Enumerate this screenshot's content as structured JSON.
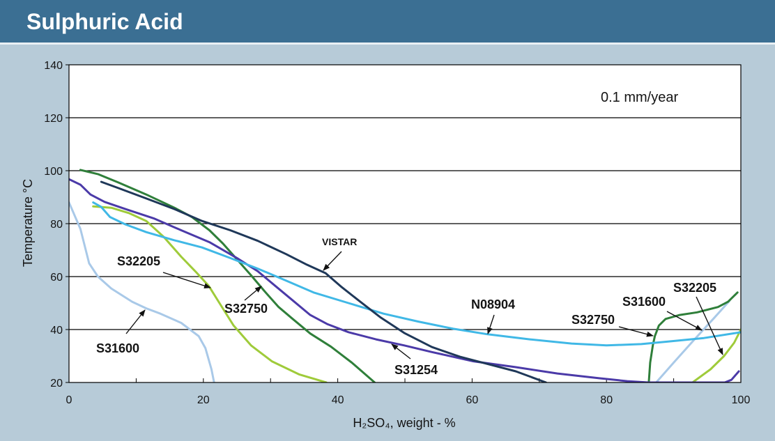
{
  "chart_data": {
    "type": "line",
    "title": "Sulphuric Acid",
    "xlabel": "H₂SO₄, weight - %",
    "ylabel": "Temperature °C",
    "annotation": "0.1 mm/year",
    "xlim": [
      0,
      100
    ],
    "ylim": [
      20,
      140
    ],
    "xticks": [
      0,
      20,
      40,
      60,
      80,
      100
    ],
    "yticks": [
      20,
      40,
      60,
      80,
      100,
      120,
      140
    ],
    "grid": true,
    "legend": "none (series labelled by callouts)",
    "series": [
      {
        "name": "S31600",
        "color": "#a9c9e8",
        "segments": [
          [
            [
              0,
              88
            ],
            [
              1.7,
              78
            ],
            [
              3,
              65
            ],
            [
              4.3,
              60
            ],
            [
              6.3,
              55.5
            ],
            [
              9.4,
              50.5
            ],
            [
              11.5,
              48
            ],
            [
              13.6,
              46
            ],
            [
              16.7,
              42.5
            ],
            [
              19.3,
              37.5
            ],
            [
              20.3,
              33
            ],
            [
              21.2,
              25
            ],
            [
              21.6,
              20
            ]
          ],
          [
            [
              87.4,
              20
            ],
            [
              90,
              27.5
            ],
            [
              93,
              36
            ],
            [
              96,
              44.3
            ],
            [
              98.3,
              50.8
            ]
          ]
        ]
      },
      {
        "name": "S32205",
        "color": "#9fcb3a",
        "segments": [
          [
            [
              3.6,
              86.5
            ],
            [
              6.3,
              86
            ],
            [
              8.9,
              84
            ],
            [
              11.5,
              81
            ],
            [
              14.1,
              75
            ],
            [
              16.7,
              67.5
            ],
            [
              18.8,
              62
            ],
            [
              20.8,
              56.5
            ],
            [
              22.4,
              50
            ],
            [
              24.5,
              41.5
            ],
            [
              27.1,
              34
            ],
            [
              30.2,
              28
            ],
            [
              34.3,
              23
            ],
            [
              38.3,
              20
            ]
          ],
          [
            [
              92.8,
              20
            ],
            [
              95.5,
              25
            ],
            [
              97.5,
              30
            ],
            [
              99,
              35
            ],
            [
              100,
              40
            ]
          ]
        ]
      },
      {
        "name": "S32750",
        "color": "#2f7f3a",
        "segments": [
          [
            [
              1.7,
              100.3
            ],
            [
              4.3,
              98.7
            ],
            [
              7.4,
              95.5
            ],
            [
              11.5,
              91
            ],
            [
              15.7,
              86
            ],
            [
              18.3,
              82.5
            ],
            [
              20.9,
              77.5
            ],
            [
              22.9,
              72.5
            ],
            [
              25,
              66.5
            ],
            [
              27.1,
              60.5
            ],
            [
              29.1,
              54.5
            ],
            [
              31.2,
              48.5
            ],
            [
              33.3,
              44
            ],
            [
              35.9,
              38.5
            ],
            [
              39,
              33.5
            ],
            [
              42.1,
              27.5
            ],
            [
              45.5,
              20
            ]
          ],
          [
            [
              86.3,
              20
            ],
            [
              86.5,
              27.5
            ],
            [
              86.9,
              34
            ],
            [
              87.2,
              37.5
            ],
            [
              87.8,
              41.5
            ],
            [
              88.8,
              44
            ],
            [
              90.9,
              45.5
            ],
            [
              93.5,
              46.5
            ],
            [
              96.6,
              48.5
            ],
            [
              98.1,
              50.5
            ],
            [
              99.5,
              54
            ]
          ]
        ]
      },
      {
        "name": "S31254",
        "color": "#4b3aa8",
        "segments": [
          [
            [
              0,
              96.8
            ],
            [
              1.7,
              94.7
            ],
            [
              3.2,
              91
            ],
            [
              5.3,
              88.2
            ],
            [
              8.4,
              85.5
            ],
            [
              12.6,
              82
            ],
            [
              16.7,
              77.5
            ],
            [
              20.9,
              73
            ],
            [
              25,
              67
            ],
            [
              28.1,
              62
            ],
            [
              30.7,
              56.5
            ],
            [
              33.3,
              51
            ],
            [
              35.9,
              45.5
            ],
            [
              38.5,
              42
            ],
            [
              41.6,
              39
            ],
            [
              45.7,
              36.3
            ],
            [
              49.9,
              34
            ],
            [
              54,
              31.5
            ],
            [
              60.2,
              28
            ],
            [
              66.5,
              25.8
            ],
            [
              72.7,
              23.4
            ],
            [
              78.9,
              21.6
            ],
            [
              83.1,
              20.5
            ],
            [
              86.2,
              20
            ],
            [
              97.6,
              20
            ],
            [
              98.6,
              21
            ],
            [
              99.7,
              24.2
            ]
          ]
        ]
      },
      {
        "name": "N08904",
        "color": "#40b8e6",
        "segments": [
          [
            [
              3.6,
              88
            ],
            [
              4.8,
              86.3
            ],
            [
              6.1,
              82.5
            ],
            [
              8.4,
              79.7
            ],
            [
              11.5,
              76.8
            ],
            [
              15.7,
              73.7
            ],
            [
              19.8,
              71
            ],
            [
              24,
              67
            ],
            [
              28.1,
              63
            ],
            [
              32.3,
              58.5
            ],
            [
              36.4,
              54
            ],
            [
              41.6,
              50
            ],
            [
              46.8,
              46
            ],
            [
              52,
              43
            ],
            [
              57.2,
              40.3
            ],
            [
              62.3,
              38.2
            ],
            [
              68.6,
              36.3
            ],
            [
              74.8,
              34.7
            ],
            [
              80,
              34
            ],
            [
              85.2,
              34.5
            ],
            [
              89.3,
              35.5
            ],
            [
              94.5,
              36.8
            ],
            [
              100,
              39
            ]
          ]
        ]
      },
      {
        "name": "VISTAR",
        "color": "#1f3859",
        "segments": [
          [
            [
              4.8,
              95.8
            ],
            [
              7.4,
              93.4
            ],
            [
              11.5,
              89.5
            ],
            [
              15.7,
              85.5
            ],
            [
              19.8,
              81
            ],
            [
              24,
              77.5
            ],
            [
              28.1,
              73.5
            ],
            [
              32.3,
              68.5
            ],
            [
              35.4,
              64.5
            ],
            [
              38.2,
              61.3
            ],
            [
              40.6,
              56
            ],
            [
              43.1,
              51
            ],
            [
              46.3,
              44.7
            ],
            [
              49.9,
              38.7
            ],
            [
              54,
              33.4
            ],
            [
              58.2,
              29.7
            ],
            [
              62.3,
              27
            ],
            [
              66.5,
              24.2
            ],
            [
              71,
              20
            ]
          ]
        ]
      }
    ]
  }
}
